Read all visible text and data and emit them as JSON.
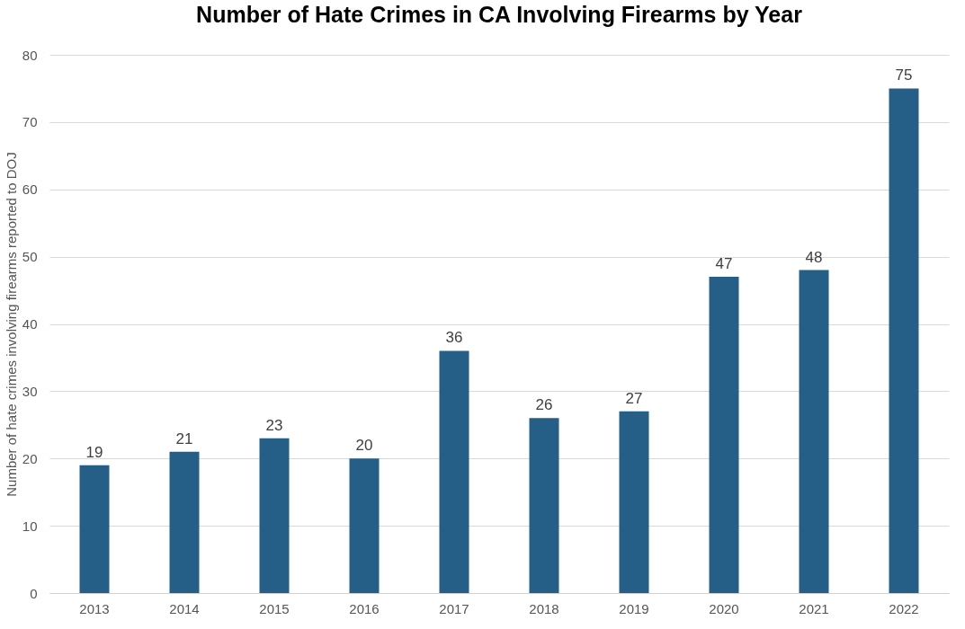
{
  "chart_data": {
    "type": "bar",
    "title": "Number of Hate Crimes in CA Involving Firearms by Year",
    "ylabel": "Number of hate crimes involving firearms reported to DOJ",
    "categories": [
      "2013",
      "2014",
      "2015",
      "2016",
      "2017",
      "2018",
      "2019",
      "2020",
      "2021",
      "2022"
    ],
    "values": [
      19,
      21,
      23,
      20,
      36,
      26,
      27,
      47,
      48,
      75
    ],
    "color": "#255e87",
    "ylim": [
      0,
      80
    ],
    "yticks": [
      0,
      10,
      20,
      30,
      40,
      50,
      60,
      70,
      80
    ],
    "grid": "y",
    "data_labels": true
  }
}
